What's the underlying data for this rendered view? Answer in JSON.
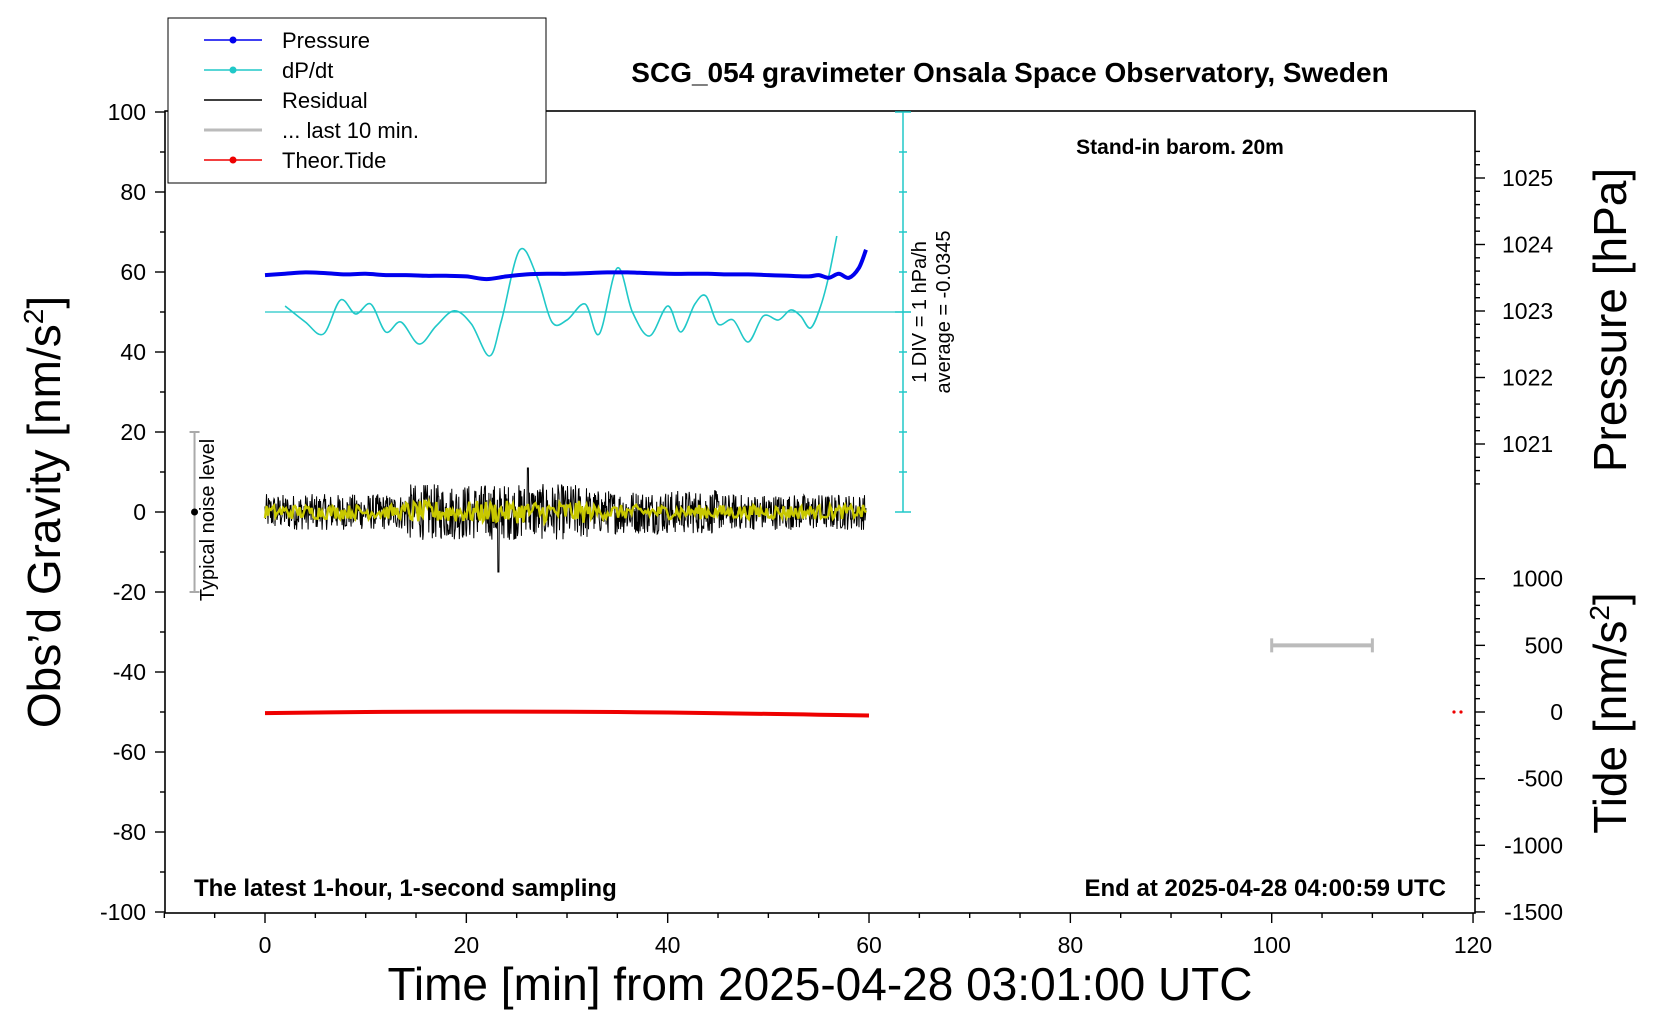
{
  "chart_data": {
    "type": "line",
    "title": "SCG_054 gravimeter Onsala Space Observatory, Sweden",
    "subtitle": "Stand-in barom. 20m",
    "xlabel": "Time [min] from 2025-04-28 03:01:00 UTC",
    "ylabel_left": "Obs’d Gravity [nm/s",
    "ylabel_left_sup": "2",
    "ylabel_left_close": "]",
    "ylabel_right_pressure": "Pressure [hPa]",
    "ylabel_right_tide": "Tide [nm/s",
    "ylabel_right_tide_sup": "2",
    "ylabel_right_tide_close": "]",
    "xlim": [
      -10,
      120
    ],
    "ylim_left": [
      -100,
      100
    ],
    "pressure_range": [
      1020.0,
      1026.0
    ],
    "tide_range": [
      -1500,
      1000
    ],
    "x_ticks": [
      "0",
      "20",
      "40",
      "60",
      "80",
      "100",
      "120"
    ],
    "y_left_ticks": [
      "100",
      "80",
      "60",
      "40",
      "20",
      "0",
      "-20",
      "-40",
      "-60",
      "-80",
      "-100"
    ],
    "pressure_ticks": [
      "1025",
      "1024",
      "1023",
      "1022",
      "1021"
    ],
    "tide_ticks": [
      "1000",
      "500",
      "0",
      "-500",
      "-1000",
      "-1500"
    ],
    "footer_left": "The latest 1-hour, 1-second sampling",
    "footer_right": "End at 2025-04-28 04:00:59 UTC",
    "noise_label": "Typical noise level",
    "dpdt_scale_label": "1 DIV = 1 hPa/h",
    "dpdt_average_label": "average = -0.0345",
    "legend": [
      {
        "name": "Pressure",
        "color": "#0000ee",
        "marker": true
      },
      {
        "name": "dP/dt",
        "color": "#20c8c8",
        "marker": true
      },
      {
        "name": "Residual",
        "color": "#000000",
        "marker": false
      },
      {
        "name": "... last 10 min.",
        "color": "#bbbbbb",
        "marker": false
      },
      {
        "name": "Theor.Tide",
        "color": "#ee0000",
        "marker": true
      }
    ],
    "series": [
      {
        "name": "Pressure",
        "unit": "hPa",
        "color": "#0000ee",
        "x": [
          0,
          2,
          4,
          6,
          8,
          10,
          12,
          14,
          16,
          18,
          20,
          22,
          24,
          26,
          28,
          30,
          32,
          34,
          36,
          38,
          40,
          42,
          44,
          46,
          48,
          50,
          52,
          54,
          55,
          56,
          57,
          58,
          59,
          59.7
        ],
        "values": [
          1023.54,
          1023.56,
          1023.58,
          1023.57,
          1023.55,
          1023.56,
          1023.54,
          1023.54,
          1023.53,
          1023.53,
          1023.52,
          1023.48,
          1023.52,
          1023.55,
          1023.56,
          1023.56,
          1023.57,
          1023.58,
          1023.58,
          1023.57,
          1023.56,
          1023.56,
          1023.56,
          1023.55,
          1023.55,
          1023.54,
          1023.53,
          1023.52,
          1023.54,
          1023.5,
          1023.56,
          1023.5,
          1023.65,
          1023.92
        ]
      },
      {
        "name": "dP/dt",
        "unit": "DIV (1 DIV = 1 hPa/h)",
        "color": "#20c8c8",
        "x": [
          2,
          4,
          5.8,
          7.5,
          9,
          10.5,
          12,
          13.5,
          15.3,
          17,
          18.8,
          20.5,
          22.3,
          23.5,
          25.3,
          27,
          28.5,
          30,
          31.8,
          33.2,
          35,
          36.5,
          38.2,
          40,
          41.3,
          42.7,
          43.8,
          45,
          46.5,
          48,
          49.5,
          51,
          52.2,
          53.2,
          54.2,
          55.2,
          56,
          56.8
        ],
        "values": [
          0.15,
          -0.25,
          -0.55,
          0.3,
          -0.05,
          0.2,
          -0.5,
          -0.25,
          -0.8,
          -0.35,
          0.03,
          -0.3,
          -1.1,
          -0.2,
          1.55,
          0.9,
          -0.25,
          -0.2,
          0.2,
          -0.55,
          1.1,
          0.0,
          -0.6,
          0.15,
          -0.5,
          0.2,
          0.4,
          -0.3,
          -0.2,
          -0.75,
          -0.1,
          -0.2,
          0.05,
          -0.1,
          -0.4,
          0.15,
          0.9,
          1.9
        ]
      },
      {
        "name": "Theor.Tide",
        "unit": "nm/s2",
        "color": "#ee0000",
        "x": [
          0,
          10,
          20,
          30,
          40,
          50,
          55,
          60
        ],
        "values": [
          -8,
          0,
          3,
          2,
          -4,
          -14,
          -20,
          -26
        ]
      }
    ],
    "residual_approx": {
      "color": "#000000",
      "smoothed_color": "#c8c800",
      "mean": 0,
      "approx_range": [
        -15,
        12
      ],
      "x_range": [
        0,
        59.7
      ]
    },
    "noise_bar": {
      "x": -7,
      "y_range": [
        -20,
        20
      ],
      "center": 0
    },
    "last_10min_bar": {
      "x_range": [
        100,
        110
      ],
      "tide_value": 500
    }
  }
}
